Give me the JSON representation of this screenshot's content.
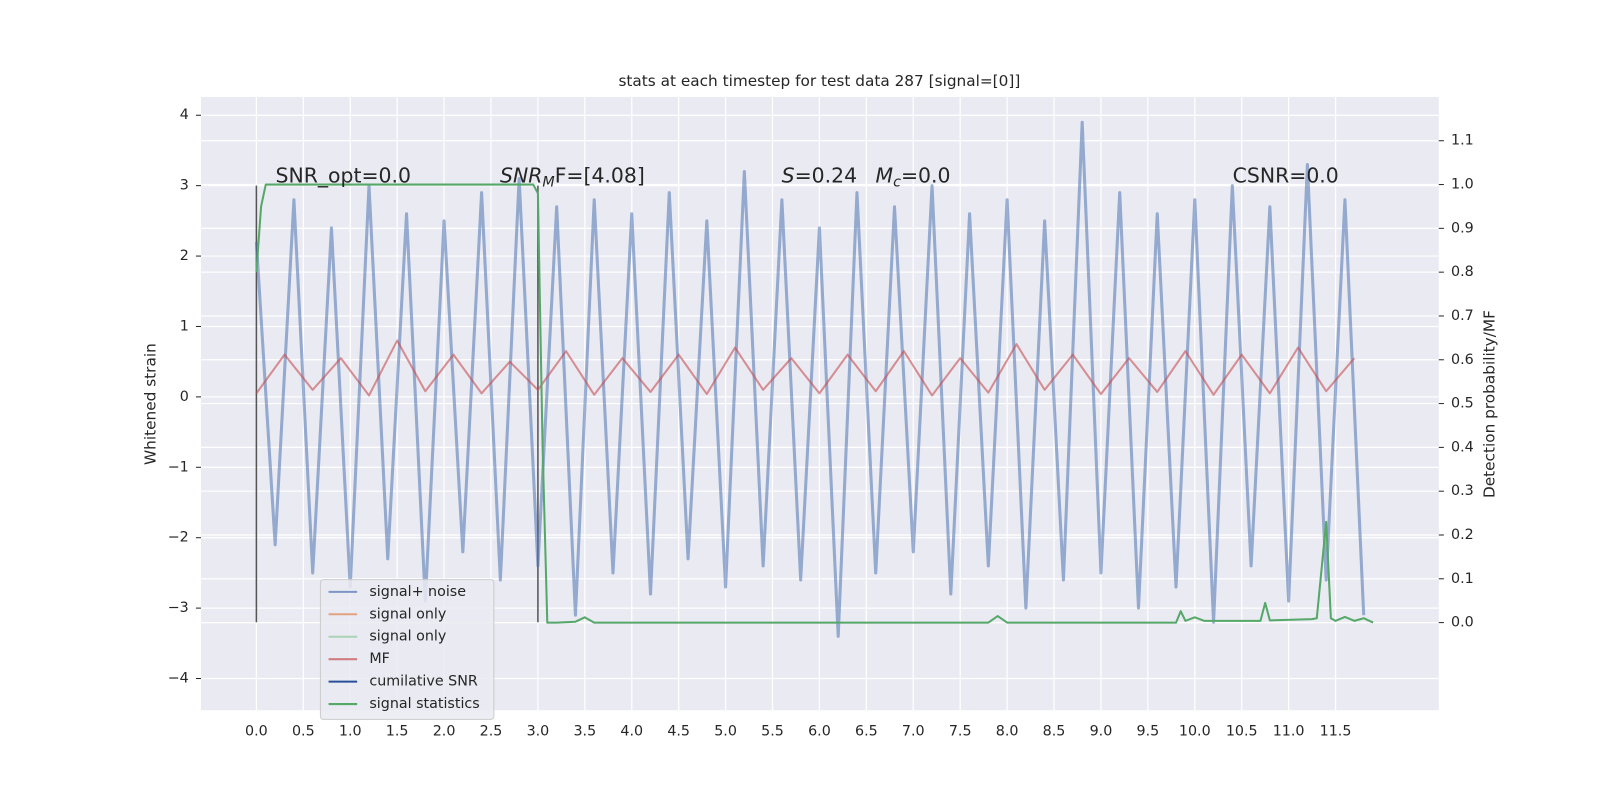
{
  "chart_data": {
    "type": "line",
    "title": "stats at each timestep for test data 287 [signal=[0]]",
    "ylabel": "Whitened strain",
    "y2label": "Detection probability/MF",
    "grid": true,
    "legend_position": "lower left",
    "xlim": [
      -0.59,
      12.6
    ],
    "ylim": [
      -4.45,
      4.26
    ],
    "y2lim": [
      -0.2,
      1.2
    ],
    "xticks": [
      {
        "value": 0,
        "label": "0.0"
      },
      {
        "value": 0.5,
        "label": "0.5"
      },
      {
        "value": 1,
        "label": "1.0"
      },
      {
        "value": 1.5,
        "label": "1.5"
      },
      {
        "value": 2,
        "label": "2.0"
      },
      {
        "value": 2.5,
        "label": "2.5"
      },
      {
        "value": 3,
        "label": "3.0"
      },
      {
        "value": 3.5,
        "label": "3.5"
      },
      {
        "value": 4,
        "label": "4.0"
      },
      {
        "value": 4.5,
        "label": "4.5"
      },
      {
        "value": 5,
        "label": "5.0"
      },
      {
        "value": 5.5,
        "label": "5.5"
      },
      {
        "value": 6,
        "label": "6.0"
      },
      {
        "value": 6.5,
        "label": "6.5"
      },
      {
        "value": 7,
        "label": "7.0"
      },
      {
        "value": 7.5,
        "label": "7.5"
      },
      {
        "value": 8,
        "label": "8.0"
      },
      {
        "value": 8.5,
        "label": "8.5"
      },
      {
        "value": 9,
        "label": "9.0"
      },
      {
        "value": 9.5,
        "label": "9.5"
      },
      {
        "value": 10,
        "label": "10.0"
      },
      {
        "value": 10.5,
        "label": "10.5"
      },
      {
        "value": 11,
        "label": "11.0"
      },
      {
        "value": 11.5,
        "label": "11.5"
      }
    ],
    "yticks": [
      {
        "value": -4,
        "label": "−4"
      },
      {
        "value": -3,
        "label": "−3"
      },
      {
        "value": -2,
        "label": "−2"
      },
      {
        "value": -1,
        "label": "−1"
      },
      0,
      1,
      2,
      3,
      4
    ],
    "y2ticks": [
      {
        "value": 0,
        "label": "0.0"
      },
      {
        "value": 0.1,
        "label": "0.1"
      },
      {
        "value": 0.2,
        "label": "0.2"
      },
      {
        "value": 0.3,
        "label": "0.3"
      },
      {
        "value": 0.4,
        "label": "0.4"
      },
      {
        "value": 0.5,
        "label": "0.5"
      },
      {
        "value": 0.6,
        "label": "0.6"
      },
      {
        "value": 0.7,
        "label": "0.7"
      },
      {
        "value": 0.8,
        "label": "0.8"
      },
      {
        "value": 0.9,
        "label": "0.9"
      },
      {
        "value": 1,
        "label": "1.0"
      },
      {
        "value": 1.1,
        "label": "1.1"
      }
    ],
    "annotations": [
      {
        "text": "SNR_opt=0.0"
      },
      {
        "base": "SNR",
        "sub": "M",
        "rest": "F=[4.08]"
      },
      {
        "base": "S",
        "rest": "=0.24"
      },
      {
        "base": "M",
        "sub": "c",
        "rest": "=0.0"
      },
      {
        "text": "CSNR=0.0"
      }
    ],
    "vlines": [
      {
        "x": 0,
        "ymin": -3.2,
        "ymax": 3.0,
        "color": "#555555"
      },
      {
        "x": 3.0,
        "ymin": -3.2,
        "ymax": 3.0,
        "color": "#555555"
      }
    ],
    "series": [
      {
        "name": "signal+ noise",
        "color": "#4c72b0",
        "x": [
          0,
          0.2,
          0.4,
          0.6,
          0.8,
          1,
          1.2,
          1.4,
          1.6,
          1.8,
          2,
          2.2,
          2.4,
          2.6,
          2.8,
          3,
          3.2,
          3.4,
          3.6,
          3.8,
          4,
          4.2,
          4.4,
          4.6,
          4.8,
          5,
          5.2,
          5.4,
          5.6,
          5.8,
          6,
          6.2,
          6.4,
          6.6,
          6.8,
          7,
          7.2,
          7.4,
          7.6,
          7.8,
          8,
          8.2,
          8.4,
          8.6,
          8.8,
          9,
          9.2,
          9.4,
          9.6,
          9.8,
          10,
          10.2,
          10.4,
          10.6,
          10.8,
          11,
          11.2,
          11.4,
          11.6,
          11.8
        ],
        "values": [
          2.2,
          -2.1,
          2.8,
          -2.5,
          2.4,
          -2.7,
          3.0,
          -2.3,
          2.6,
          -2.9,
          2.5,
          -2.2,
          2.9,
          -2.6,
          3.1,
          -2.4,
          2.7,
          -3.1,
          2.8,
          -2.5,
          2.6,
          -2.8,
          2.9,
          -2.3,
          2.5,
          -2.7,
          3.2,
          -2.4,
          2.8,
          -2.6,
          2.4,
          -3.4,
          2.9,
          -2.5,
          2.7,
          -2.2,
          3.0,
          -2.8,
          2.6,
          -2.4,
          2.8,
          -3.0,
          2.5,
          -2.6,
          3.9,
          -2.5,
          2.9,
          -3.0,
          2.6,
          -2.7,
          2.8,
          -3.2,
          3.0,
          -2.4,
          2.7,
          -2.9,
          3.3,
          -2.6,
          2.8,
          -3.1
        ]
      },
      {
        "name": "signal only",
        "color": "#dd8452",
        "x": [],
        "values": []
      },
      {
        "name": "signal only",
        "color": "#8fc89a",
        "x": [],
        "values": []
      },
      {
        "name": "MF",
        "color": "#c44e52",
        "x": [
          0,
          0.3,
          0.6,
          0.9,
          1.2,
          1.5,
          1.8,
          2.1,
          2.4,
          2.7,
          3,
          3.3,
          3.6,
          3.9,
          4.2,
          4.5,
          4.8,
          5.1,
          5.4,
          5.7,
          6,
          6.3,
          6.6,
          6.9,
          7.2,
          7.5,
          7.8,
          8.1,
          8.4,
          8.7,
          9,
          9.3,
          9.6,
          9.9,
          10.2,
          10.5,
          10.8,
          11.1,
          11.4,
          11.7
        ],
        "values": [
          0.05,
          0.6,
          0.1,
          0.55,
          0.02,
          0.8,
          0.08,
          0.6,
          0.05,
          0.5,
          0.1,
          0.65,
          0.03,
          0.55,
          0.07,
          0.6,
          0.04,
          0.7,
          0.1,
          0.55,
          0.05,
          0.6,
          0.08,
          0.65,
          0.02,
          0.55,
          0.06,
          0.75,
          0.1,
          0.6,
          0.04,
          0.55,
          0.07,
          0.65,
          0.03,
          0.6,
          0.05,
          0.7,
          0.08,
          0.55
        ]
      },
      {
        "name": "cumilative SNR",
        "color": "#2a4f9a",
        "x": [],
        "values": []
      },
      {
        "name": "signal statistics",
        "color": "#55a868",
        "axis": "y2",
        "x": [
          0,
          0.05,
          0.1,
          2.95,
          3.0,
          3.05,
          3.1,
          3.2,
          3.4,
          3.5,
          3.6,
          7.8,
          7.9,
          8.0,
          9.8,
          9.85,
          9.9,
          10.0,
          10.1,
          10.7,
          10.75,
          10.8,
          11.25,
          11.3,
          11.4,
          11.45,
          11.5,
          11.6,
          11.7,
          11.8,
          11.9
        ],
        "values": [
          0.8,
          0.95,
          1.0,
          1.0,
          0.98,
          0.4,
          0.0,
          0.0,
          0.002,
          0.012,
          0.0,
          0.0,
          0.015,
          0.0,
          0.0,
          0.026,
          0.004,
          0.012,
          0.004,
          0.004,
          0.045,
          0.005,
          0.008,
          0.01,
          0.23,
          0.01,
          0.004,
          0.013,
          0.004,
          0.01,
          0.0
        ]
      }
    ]
  }
}
